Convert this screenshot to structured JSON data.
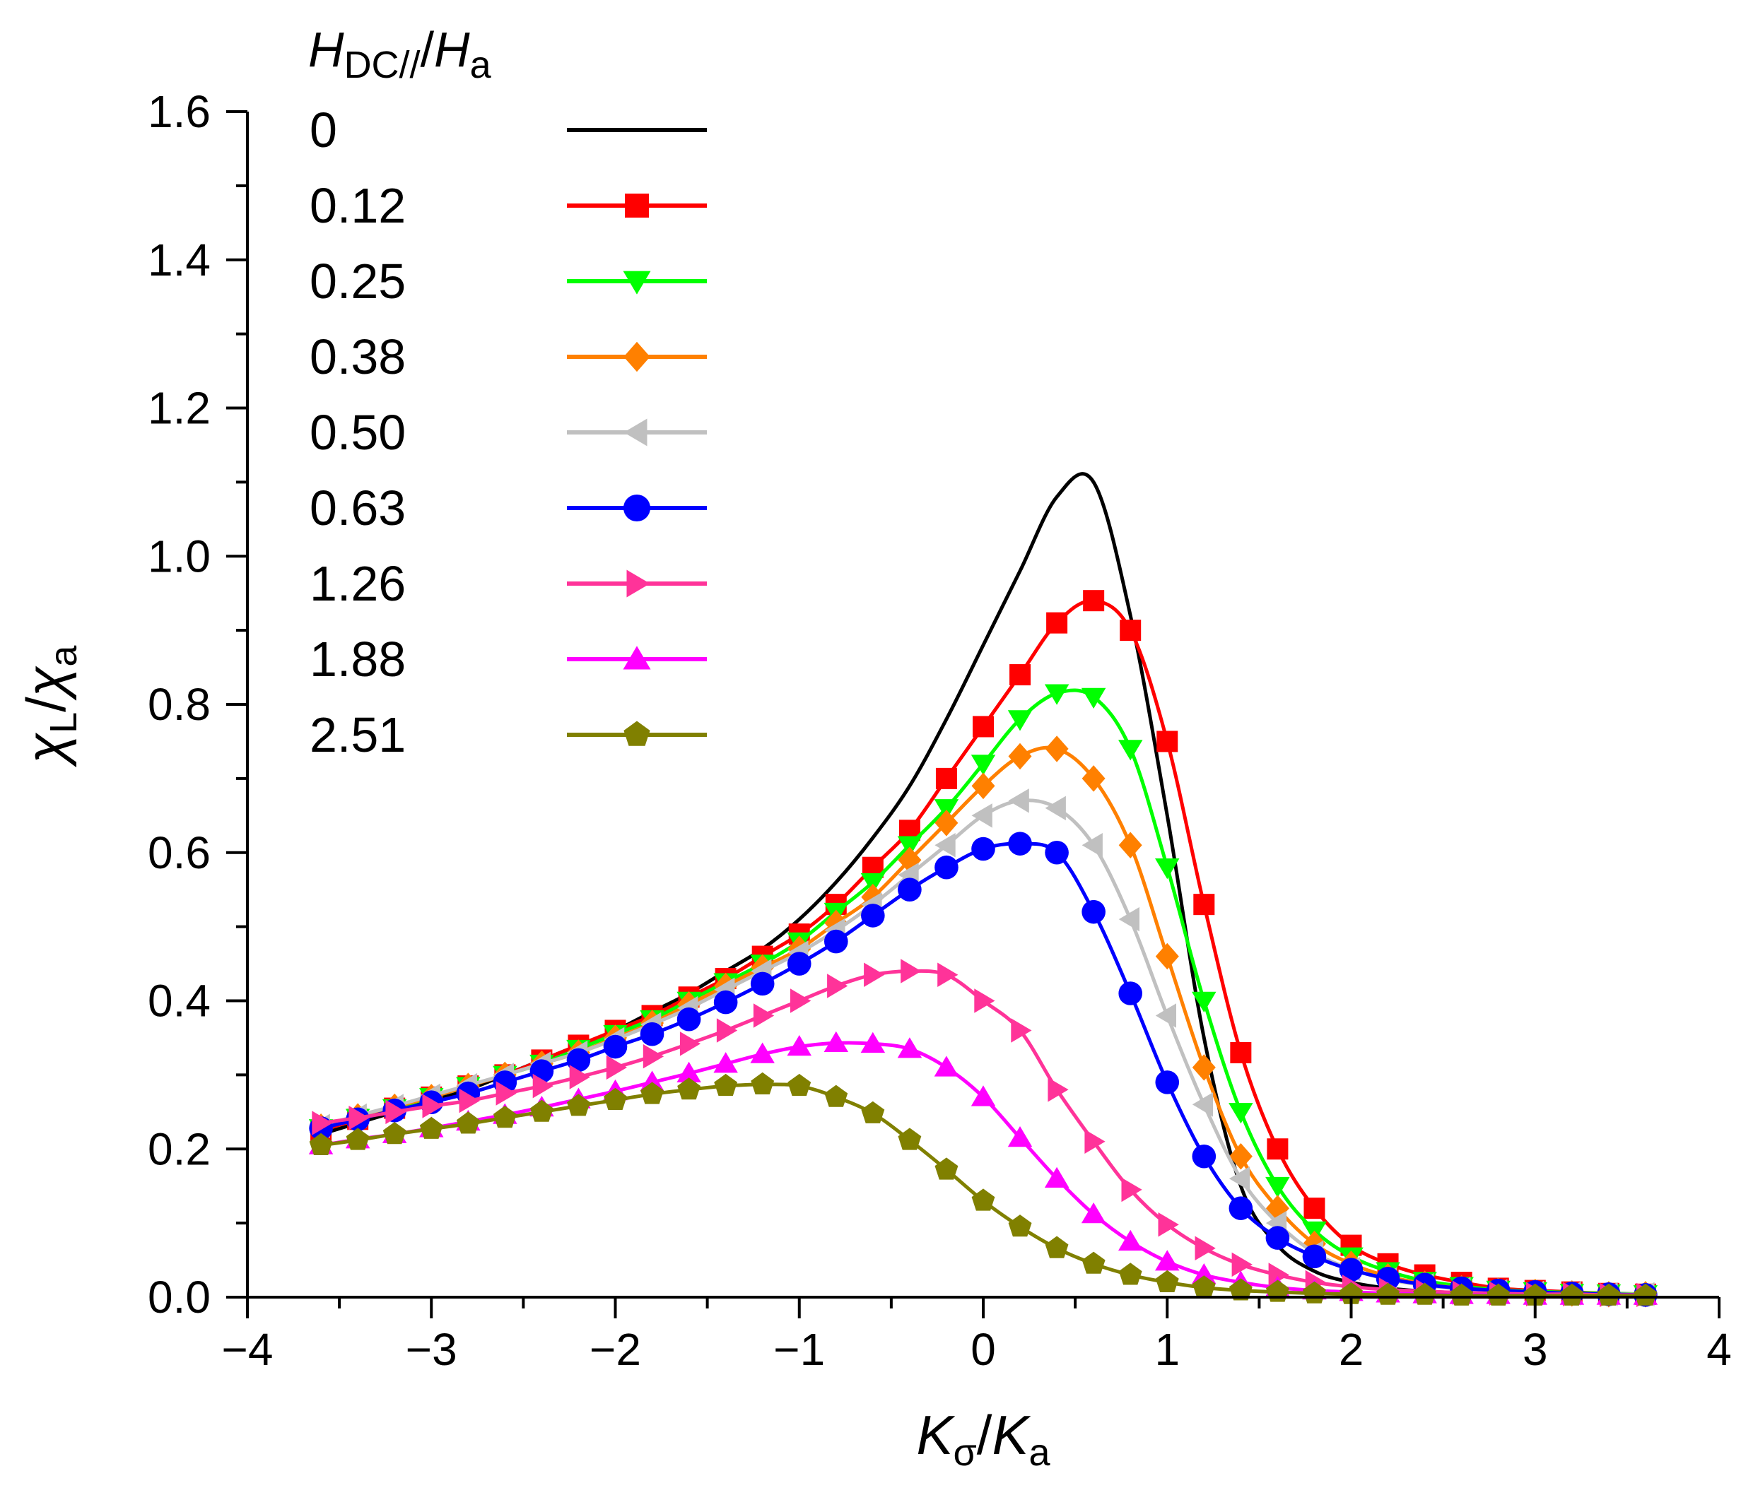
{
  "chart_data": {
    "type": "line",
    "title": "",
    "xlabel": {
      "main": "K",
      "sub": "σ",
      "sep": "/",
      "main2": "K",
      "sub2": "a"
    },
    "ylabel": {
      "main": "χ",
      "sub": "L",
      "sep": "/",
      "main2": "χ",
      "sub2": "a"
    },
    "xlim": [
      -4,
      4
    ],
    "ylim": [
      0,
      1.6
    ],
    "xticks": [
      -4,
      -3,
      -2,
      -1,
      0,
      1,
      2,
      3,
      4
    ],
    "xtick_labels": [
      "−4",
      "−3",
      "−2",
      "−1",
      "0",
      "1",
      "2",
      "3",
      "4"
    ],
    "yticks": [
      0,
      0.2,
      0.4,
      0.6,
      0.8,
      1.0,
      1.2,
      1.4,
      1.6
    ],
    "ytick_labels": [
      "0.0",
      "0.2",
      "0.4",
      "0.6",
      "0.8",
      "1.0",
      "1.2",
      "1.4",
      "1.6"
    ],
    "grid": false,
    "legend": {
      "placement": "top-left",
      "title": {
        "main": "H",
        "sub": "DC//",
        "sep": "/",
        "main2": "H",
        "sub2": "a"
      }
    },
    "x": [
      -3.6,
      -3.4,
      -3.2,
      -3.0,
      -2.8,
      -2.6,
      -2.4,
      -2.2,
      -2.0,
      -1.8,
      -1.6,
      -1.4,
      -1.2,
      -1.0,
      -0.8,
      -0.6,
      -0.4,
      -0.2,
      0.0,
      0.2,
      0.4,
      0.6,
      0.8,
      1.0,
      1.2,
      1.4,
      1.6,
      1.8,
      2.0,
      2.2,
      2.4,
      2.6,
      2.8,
      3.0,
      3.2,
      3.4,
      3.6
    ],
    "series": [
      {
        "name": "0",
        "color": "#000000",
        "marker": "none",
        "values": [
          0.22,
          0.235,
          0.25,
          0.265,
          0.28,
          0.3,
          0.32,
          0.34,
          0.36,
          0.385,
          0.41,
          0.44,
          0.47,
          0.51,
          0.56,
          0.62,
          0.69,
          0.78,
          0.88,
          0.98,
          1.08,
          1.1,
          0.92,
          0.65,
          0.35,
          0.15,
          0.07,
          0.035,
          0.02,
          0.012,
          0.008,
          0.006,
          0.005,
          0.004,
          0.003,
          0.003,
          0.003
        ]
      },
      {
        "name": "0.12",
        "color": "#ff0000",
        "marker": "square",
        "values": [
          0.225,
          0.24,
          0.255,
          0.27,
          0.285,
          0.3,
          0.32,
          0.34,
          0.36,
          0.38,
          0.405,
          0.43,
          0.46,
          0.49,
          0.53,
          0.58,
          0.63,
          0.7,
          0.77,
          0.84,
          0.91,
          0.94,
          0.9,
          0.75,
          0.53,
          0.33,
          0.2,
          0.12,
          0.07,
          0.045,
          0.03,
          0.02,
          0.012,
          0.009,
          0.007,
          0.005,
          0.004
        ]
      },
      {
        "name": "0.25",
        "color": "#00ff00",
        "marker": "triangle-down",
        "values": [
          0.228,
          0.242,
          0.255,
          0.27,
          0.285,
          0.3,
          0.315,
          0.335,
          0.355,
          0.375,
          0.4,
          0.425,
          0.45,
          0.48,
          0.52,
          0.56,
          0.61,
          0.66,
          0.72,
          0.78,
          0.815,
          0.81,
          0.74,
          0.58,
          0.4,
          0.25,
          0.15,
          0.09,
          0.055,
          0.035,
          0.022,
          0.015,
          0.01,
          0.008,
          0.006,
          0.005,
          0.004
        ]
      },
      {
        "name": "0.38",
        "color": "#ff8000",
        "marker": "diamond",
        "values": [
          0.23,
          0.244,
          0.257,
          0.27,
          0.285,
          0.3,
          0.315,
          0.33,
          0.35,
          0.37,
          0.395,
          0.42,
          0.445,
          0.47,
          0.505,
          0.54,
          0.59,
          0.64,
          0.69,
          0.73,
          0.74,
          0.7,
          0.61,
          0.46,
          0.31,
          0.19,
          0.12,
          0.072,
          0.045,
          0.028,
          0.018,
          0.012,
          0.009,
          0.007,
          0.005,
          0.004,
          0.004
        ]
      },
      {
        "name": "0.50",
        "color": "#c0c0c0",
        "marker": "triangle-left",
        "values": [
          0.231,
          0.245,
          0.258,
          0.272,
          0.286,
          0.3,
          0.315,
          0.33,
          0.348,
          0.368,
          0.39,
          0.415,
          0.44,
          0.465,
          0.495,
          0.53,
          0.57,
          0.61,
          0.65,
          0.67,
          0.66,
          0.61,
          0.51,
          0.38,
          0.26,
          0.16,
          0.1,
          0.06,
          0.038,
          0.024,
          0.016,
          0.011,
          0.008,
          0.006,
          0.005,
          0.004,
          0.004
        ]
      },
      {
        "name": "0.63",
        "color": "#0000ff",
        "marker": "circle",
        "values": [
          0.228,
          0.24,
          0.252,
          0.263,
          0.275,
          0.29,
          0.305,
          0.32,
          0.338,
          0.355,
          0.375,
          0.398,
          0.423,
          0.45,
          0.48,
          0.515,
          0.55,
          0.58,
          0.605,
          0.612,
          0.6,
          0.52,
          0.41,
          0.29,
          0.19,
          0.12,
          0.08,
          0.055,
          0.037,
          0.025,
          0.017,
          0.012,
          0.009,
          0.007,
          0.005,
          0.004,
          0.003
        ]
      },
      {
        "name": "1.26",
        "color": "#ff3399",
        "marker": "triangle-right",
        "values": [
          0.235,
          0.242,
          0.25,
          0.258,
          0.265,
          0.275,
          0.285,
          0.297,
          0.31,
          0.325,
          0.342,
          0.36,
          0.38,
          0.4,
          0.42,
          0.435,
          0.44,
          0.435,
          0.4,
          0.36,
          0.28,
          0.21,
          0.145,
          0.098,
          0.066,
          0.044,
          0.03,
          0.02,
          0.014,
          0.01,
          0.008,
          0.006,
          0.005,
          0.004,
          0.004,
          0.003,
          0.003
        ]
      },
      {
        "name": "1.88",
        "color": "#ff00ff",
        "marker": "triangle-up",
        "values": [
          0.205,
          0.213,
          0.22,
          0.228,
          0.237,
          0.246,
          0.256,
          0.267,
          0.278,
          0.29,
          0.302,
          0.315,
          0.328,
          0.338,
          0.343,
          0.342,
          0.335,
          0.31,
          0.27,
          0.215,
          0.16,
          0.112,
          0.075,
          0.048,
          0.03,
          0.02,
          0.013,
          0.009,
          0.007,
          0.005,
          0.004,
          0.003,
          0.003,
          0.002,
          0.002,
          0.002,
          0.002
        ]
      },
      {
        "name": "2.51",
        "color": "#808000",
        "marker": "pentagon",
        "values": [
          0.205,
          0.212,
          0.22,
          0.227,
          0.234,
          0.242,
          0.25,
          0.258,
          0.266,
          0.274,
          0.28,
          0.285,
          0.287,
          0.285,
          0.27,
          0.248,
          0.212,
          0.172,
          0.13,
          0.095,
          0.066,
          0.045,
          0.03,
          0.02,
          0.013,
          0.009,
          0.007,
          0.005,
          0.004,
          0.003,
          0.003,
          0.002,
          0.002,
          0.002,
          0.002,
          0.002,
          0.002
        ]
      }
    ]
  }
}
